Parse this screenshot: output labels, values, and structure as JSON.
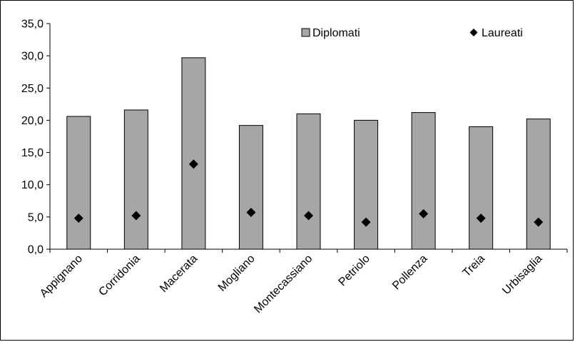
{
  "chart_data": {
    "type": "bar",
    "categories": [
      "Appignano",
      "Corridonia",
      "Macerata",
      "Mogliano",
      "Montecassiano",
      "Petriolo",
      "Pollenza",
      "Treia",
      "Urbisaglia"
    ],
    "series": [
      {
        "name": "Diplomati",
        "kind": "bar",
        "color": "#a6a6a6",
        "values": [
          20.6,
          21.6,
          29.7,
          19.2,
          21.0,
          20.0,
          21.2,
          19.0,
          20.2
        ]
      },
      {
        "name": "Laureati",
        "kind": "marker",
        "marker": "diamond",
        "color": "#000000",
        "values": [
          4.8,
          5.2,
          13.2,
          5.7,
          5.2,
          4.2,
          5.5,
          4.8,
          4.2
        ]
      }
    ],
    "yticks": [
      "0,0",
      "5,0",
      "10,0",
      "15,0",
      "20,0",
      "25,0",
      "30,0",
      "35,0"
    ],
    "ylim": [
      0,
      35
    ],
    "legend": {
      "placement": "top-right"
    }
  }
}
